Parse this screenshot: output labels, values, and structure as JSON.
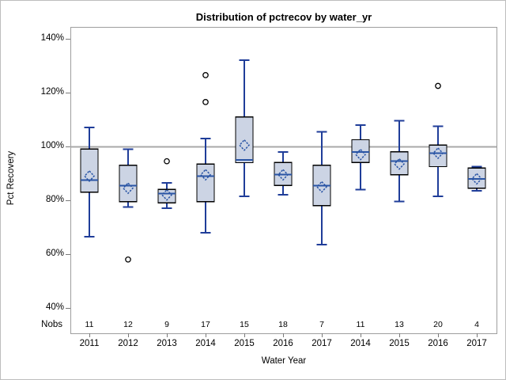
{
  "chart_data": {
    "type": "boxplot",
    "title": "Distribution of pctrecov by water_yr",
    "xlabel": "Water Year",
    "ylabel": "Pct Recovery",
    "nobs_label": "Nobs",
    "y_ticks": [
      {
        "label": "140%",
        "value": 140
      },
      {
        "label": "120%",
        "value": 120
      },
      {
        "label": "100%",
        "value": 100
      },
      {
        "label": "80%",
        "value": 80
      },
      {
        "label": "60%",
        "value": 60
      },
      {
        "label": "40%",
        "value": 40
      }
    ],
    "ylim": [
      40,
      140
    ],
    "reference_line": 100,
    "grid": "off",
    "legend": "none",
    "categories": [
      "2011",
      "2012",
      "2013",
      "2014",
      "2015",
      "2016",
      "2017",
      "2014",
      "2015",
      "2016",
      "2017"
    ],
    "boxes": [
      {
        "category": "2011",
        "nobs": 11,
        "whisker_low": 66.5,
        "q1": 83,
        "median": 87.5,
        "mean": 89,
        "q3": 99,
        "whisker_high": 107,
        "outliers": []
      },
      {
        "category": "2012",
        "nobs": 12,
        "whisker_low": 77.5,
        "q1": 79.5,
        "median": 85.5,
        "mean": 84.5,
        "q3": 93,
        "whisker_high": 99,
        "outliers": [
          58
        ]
      },
      {
        "category": "2013",
        "nobs": 9,
        "whisker_low": 77,
        "q1": 79,
        "median": 82.5,
        "mean": 82,
        "q3": 84,
        "whisker_high": 86.5,
        "outliers": [
          94.5
        ]
      },
      {
        "category": "2014",
        "nobs": 17,
        "whisker_low": 68,
        "q1": 79.5,
        "median": 89,
        "mean": 89.5,
        "q3": 93.5,
        "whisker_high": 103,
        "outliers": [
          126.5,
          116.5
        ]
      },
      {
        "category": "2015",
        "nobs": 15,
        "whisker_low": 81.5,
        "q1": 94,
        "median": 95,
        "mean": 100.5,
        "q3": 111,
        "whisker_high": 132,
        "outliers": []
      },
      {
        "category": "2016",
        "nobs": 18,
        "whisker_low": 82,
        "q1": 85.5,
        "median": 89.5,
        "mean": 89.5,
        "q3": 94,
        "whisker_high": 98,
        "outliers": []
      },
      {
        "category": "2017",
        "nobs": 7,
        "whisker_low": 63.5,
        "q1": 78,
        "median": 85.5,
        "mean": 85,
        "q3": 93,
        "whisker_high": 105.5,
        "outliers": []
      },
      {
        "category": "2014",
        "nobs": 11,
        "whisker_low": 84,
        "q1": 94,
        "median": 98,
        "mean": 97,
        "q3": 102.5,
        "whisker_high": 108,
        "outliers": []
      },
      {
        "category": "2015",
        "nobs": 13,
        "whisker_low": 79.5,
        "q1": 89.5,
        "median": 94.5,
        "mean": 93.5,
        "q3": 98,
        "whisker_high": 109.5,
        "outliers": []
      },
      {
        "category": "2016",
        "nobs": 20,
        "whisker_low": 81.5,
        "q1": 92.5,
        "median": 97.5,
        "mean": 97.5,
        "q3": 100.5,
        "whisker_high": 107.5,
        "outliers": [
          122.5
        ]
      },
      {
        "category": "2017",
        "nobs": 4,
        "whisker_low": 83.5,
        "q1": 84.5,
        "median": 88,
        "mean": 88,
        "q3": 92,
        "whisker_high": 92.5,
        "outliers": []
      }
    ]
  },
  "colors": {
    "box_fill": "#ccd4e4",
    "box_border": "#000000",
    "whisker": "#1f3d99",
    "median": "#2a55a5",
    "mean": "#2a55a5",
    "outlier_stroke": "#000000",
    "reference_line": "#a8a8a8",
    "frame": "#9e9e9e",
    "tick": "#7a7a7a",
    "text": "#000000"
  }
}
